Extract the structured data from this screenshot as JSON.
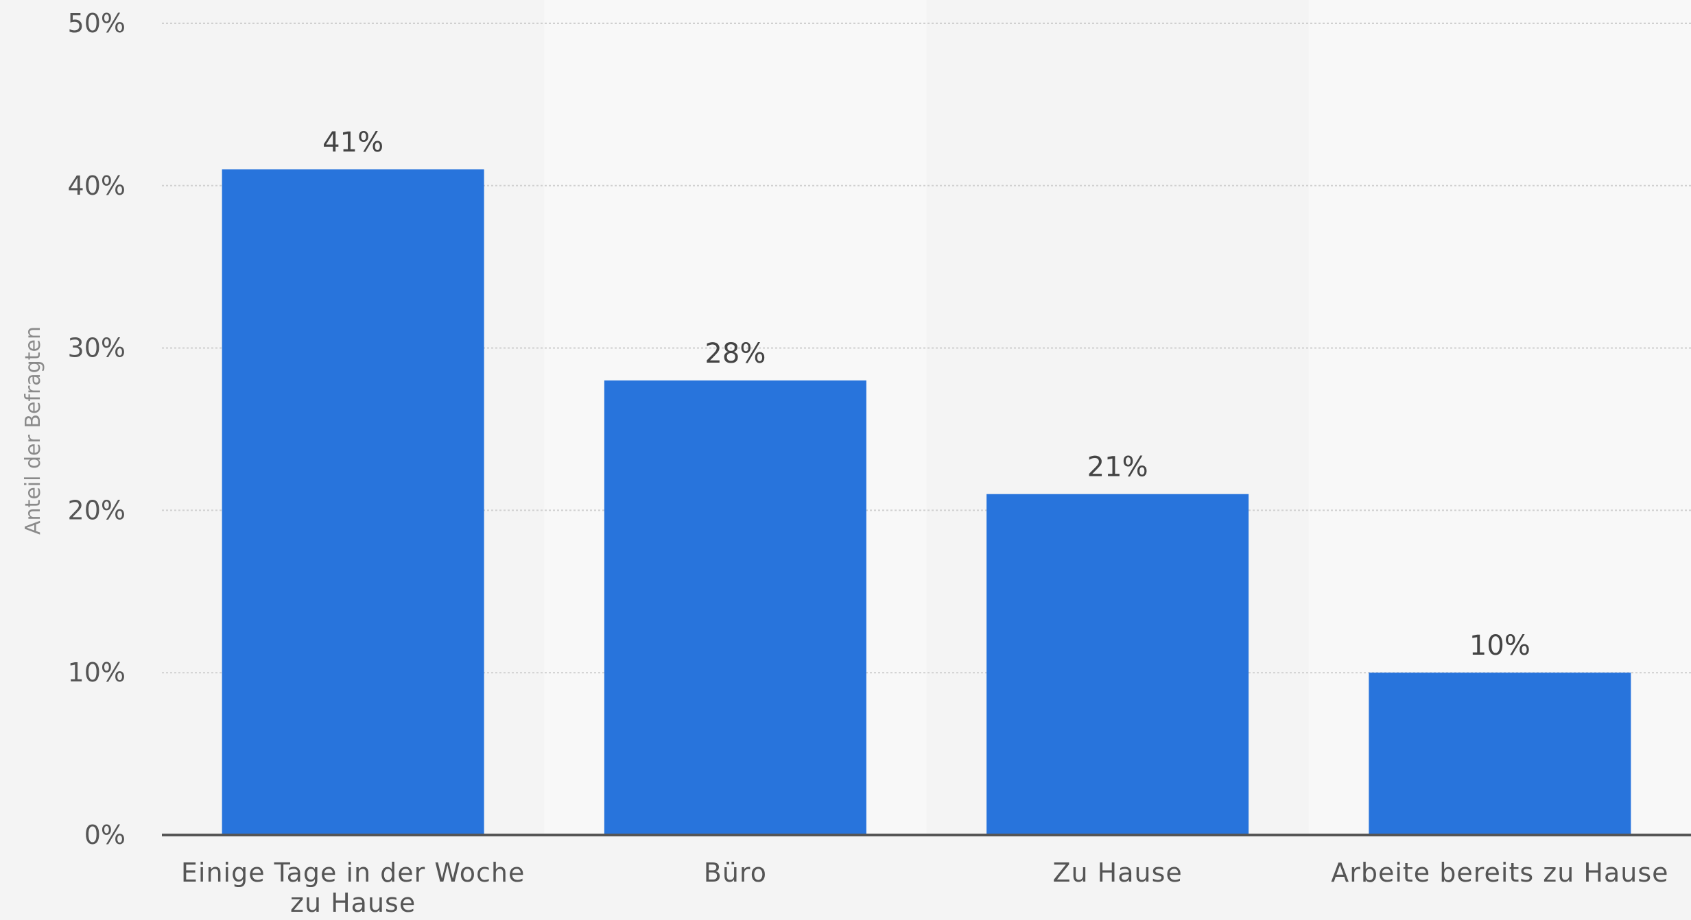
{
  "chart_data": {
    "type": "bar",
    "title": "",
    "xlabel": "",
    "ylabel": "Anteil der Befragten",
    "categories": [
      [
        "Einige Tage in der Woche",
        "zu Hause"
      ],
      [
        "Büro"
      ],
      [
        "Zu Hause"
      ],
      [
        "Arbeite bereits zu Hause"
      ]
    ],
    "values": [
      41,
      28,
      21,
      10
    ],
    "value_labels": [
      "41%",
      "28%",
      "21%",
      "10%"
    ],
    "ylim": [
      0,
      50
    ],
    "yticks": [
      0,
      10,
      20,
      30,
      40,
      50
    ],
    "ytick_labels": [
      "0%",
      "10%",
      "20%",
      "30%",
      "40%",
      "50%"
    ],
    "grid": true,
    "legend": "none",
    "colors": {
      "bar": "#2874dc",
      "background": "#f4f4f4",
      "band_alt": "#f8f8f8",
      "baseline": "#555555",
      "grid": "#d0d0d0"
    }
  }
}
